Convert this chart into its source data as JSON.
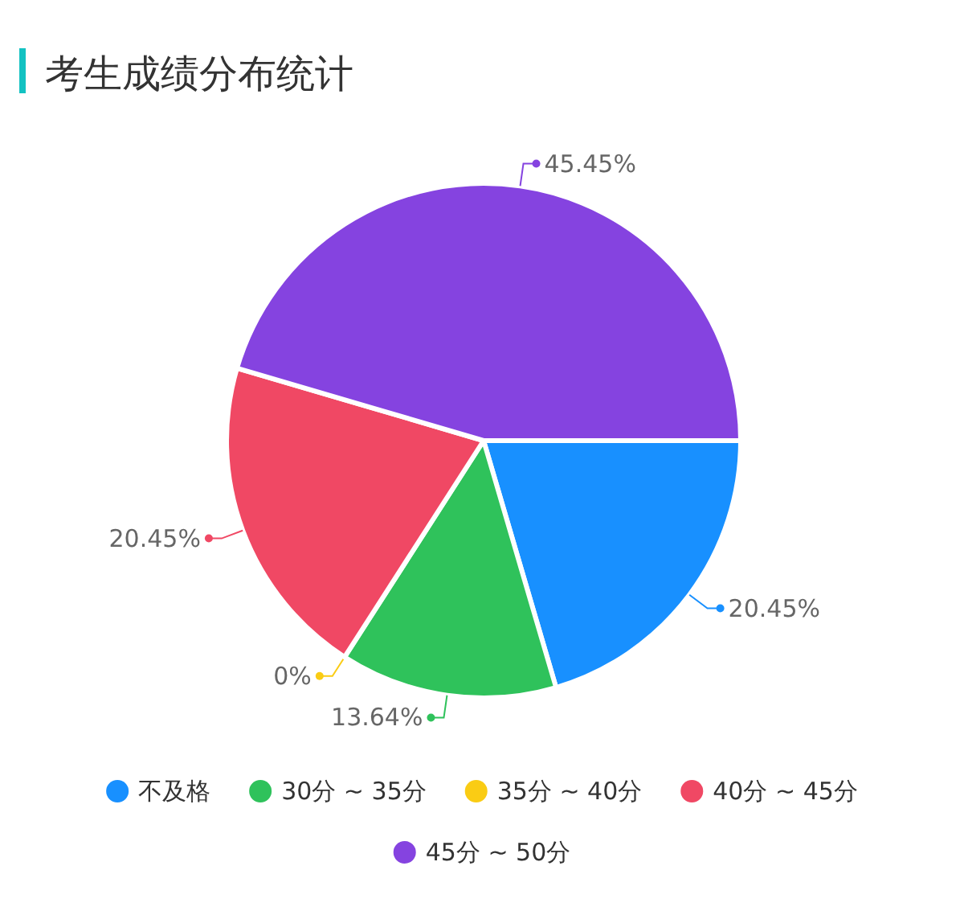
{
  "chart_data": {
    "type": "pie",
    "title": "考生成绩分布统计",
    "categories": [
      "不及格",
      "30分 ~ 35分",
      "35分 ~ 40分",
      "40分 ~ 45分",
      "45分 ~ 50分"
    ],
    "values": [
      20.45,
      13.64,
      0,
      20.45,
      45.45
    ],
    "colors": [
      "#1890ff",
      "#2fc25b",
      "#facc14",
      "#f04864",
      "#8543e0"
    ],
    "value_labels": [
      "20.45%",
      "13.64%",
      "0%",
      "20.45%",
      "45.45%"
    ],
    "legend": "bottom"
  }
}
